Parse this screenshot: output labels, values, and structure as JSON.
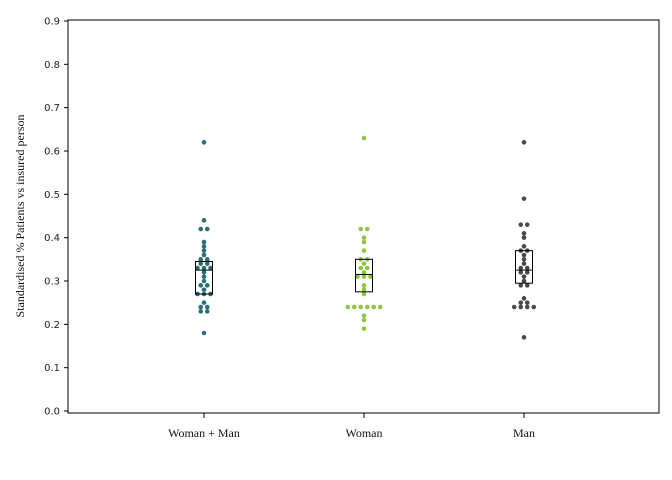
{
  "chart_data": {
    "type": "scatter",
    "subtype": "beeswarm-with-box",
    "title": "",
    "xlabel": "",
    "ylabel": "Standardised % Patients vs insured person",
    "ylim": [
      0,
      0.9
    ],
    "yticks": [
      "0.0",
      "0.1",
      "0.2",
      "0.3",
      "0.4",
      "0.5",
      "0.6",
      "0.7",
      "0.8",
      "0.9"
    ],
    "grid": false,
    "categories": [
      "Woman + Man",
      "Woman",
      "Man"
    ],
    "series": [
      {
        "category": "Woman + Man",
        "color": "#2a6f74",
        "box": {
          "q1": 0.27,
          "median": 0.325,
          "q3": 0.345
        },
        "values": [
          0.62,
          0.44,
          0.42,
          0.42,
          0.39,
          0.38,
          0.37,
          0.36,
          0.35,
          0.35,
          0.34,
          0.34,
          0.33,
          0.33,
          0.33,
          0.32,
          0.31,
          0.3,
          0.29,
          0.29,
          0.28,
          0.27,
          0.27,
          0.27,
          0.25,
          0.24,
          0.24,
          0.23,
          0.23,
          0.18
        ]
      },
      {
        "category": "Woman",
        "color": "#8cc63f",
        "box": {
          "q1": 0.275,
          "median": 0.315,
          "q3": 0.35
        },
        "values": [
          0.63,
          0.42,
          0.42,
          0.4,
          0.39,
          0.37,
          0.35,
          0.35,
          0.34,
          0.33,
          0.33,
          0.32,
          0.31,
          0.31,
          0.31,
          0.29,
          0.28,
          0.27,
          0.24,
          0.24,
          0.24,
          0.24,
          0.24,
          0.24,
          0.22,
          0.21,
          0.19
        ]
      },
      {
        "category": "Man",
        "color": "#4a4a4a",
        "box": {
          "q1": 0.295,
          "median": 0.325,
          "q3": 0.37
        },
        "values": [
          0.62,
          0.49,
          0.43,
          0.43,
          0.41,
          0.4,
          0.38,
          0.37,
          0.37,
          0.36,
          0.35,
          0.34,
          0.33,
          0.33,
          0.32,
          0.32,
          0.31,
          0.3,
          0.29,
          0.29,
          0.26,
          0.25,
          0.25,
          0.24,
          0.24,
          0.24,
          0.24,
          0.17
        ]
      }
    ]
  }
}
